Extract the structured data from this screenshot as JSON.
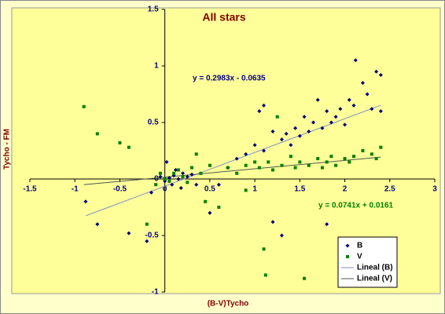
{
  "chart_data": {
    "type": "scatter",
    "title": "All stars",
    "x_label": "(B-V)Tycho",
    "y_label": "Tycho - FM",
    "xlim": [
      -1.5,
      3
    ],
    "xticks": [
      -1.5,
      -1,
      -0.5,
      0,
      0.5,
      1,
      1.5,
      2,
      2.5,
      3
    ],
    "ylim": [
      -1,
      1.5
    ],
    "yticks": [
      -1,
      -0.5,
      0,
      0.5,
      1,
      1.5
    ],
    "legend": "lower right",
    "series": [
      {
        "name": "B",
        "color": "#000080",
        "marker": "diamond",
        "x": [
          0,
          0.05,
          0.1,
          0.15,
          0.2,
          0.25,
          0.3,
          -0.05,
          0.08,
          0.12,
          0.02,
          0.18,
          0.35,
          -0.88,
          -0.75,
          -0.4,
          -0.2,
          -0.15,
          0.5,
          0.6,
          0.7,
          0.8,
          0.9,
          1.0,
          1.05,
          1.1,
          1.2,
          1.3,
          1.35,
          1.4,
          1.45,
          1.5,
          1.55,
          1.6,
          1.65,
          1.7,
          1.75,
          1.8,
          1.85,
          1.9,
          1.95,
          2.0,
          2.05,
          2.1,
          2.12,
          2.2,
          2.25,
          2.3,
          2.35,
          2.4,
          2.4,
          1.2,
          1.3,
          1.8,
          1.1
        ],
        "values": [
          -0.02,
          0.01,
          0.03,
          0.0,
          0.05,
          0.02,
          0.04,
          0.02,
          -0.05,
          0.08,
          0.15,
          -0.08,
          -0.05,
          -0.2,
          -0.4,
          -0.48,
          -0.55,
          -0.12,
          -0.3,
          -0.05,
          0.1,
          0.18,
          0.22,
          0.3,
          0.6,
          0.25,
          0.42,
          0.35,
          0.4,
          0.3,
          0.45,
          0.38,
          0.55,
          0.42,
          0.5,
          0.7,
          0.45,
          0.6,
          0.5,
          0.55,
          0.62,
          0.48,
          0.7,
          0.65,
          1.05,
          0.85,
          0.75,
          0.62,
          0.95,
          0.92,
          0.6,
          -0.38,
          -0.5,
          -0.4,
          0.65
        ]
      },
      {
        "name": "V",
        "color": "#008000",
        "marker": "square",
        "x": [
          -0.9,
          -0.75,
          -0.5,
          -0.4,
          -0.1,
          -0.05,
          0,
          0.05,
          0.1,
          0.15,
          0.2,
          0.25,
          0.3,
          0.35,
          0.4,
          0.5,
          0.6,
          -0.2,
          0.7,
          0.8,
          0.9,
          1.0,
          1.05,
          1.1,
          1.12,
          1.15,
          1.2,
          1.3,
          1.4,
          1.45,
          1.5,
          1.55,
          1.6,
          1.7,
          1.75,
          1.8,
          1.85,
          1.9,
          2.0,
          2.1,
          2.2,
          2.3,
          2.4,
          2.35,
          2.05,
          1.25,
          0.45,
          0.9
        ],
        "values": [
          0.64,
          0.4,
          0.32,
          0.28,
          -0.05,
          0.05,
          0,
          -0.02,
          0.05,
          0.08,
          0.02,
          -0.03,
          0.1,
          0.22,
          0.05,
          0.12,
          -0.25,
          -0.4,
          0.1,
          0.05,
          0.12,
          0.15,
          0.1,
          -0.62,
          -0.85,
          0.15,
          0.08,
          0.12,
          0.2,
          0.1,
          0.15,
          -0.88,
          0.12,
          0.18,
          0.1,
          0.15,
          0.2,
          0.12,
          0.18,
          0.2,
          0.25,
          0.22,
          0.28,
          0.18,
          0.15,
          0.55,
          -0.2,
          -0.1
        ]
      }
    ],
    "trendlines": [
      {
        "name": "Lineal (B)",
        "series": 0,
        "color": "#7f8fc8",
        "slope": 0.2983,
        "intercept": -0.0635,
        "label": "y = 0.2983x - 0.0635"
      },
      {
        "name": "Lineal (V)",
        "series": 1,
        "color": "#4a5a4a",
        "slope": 0.0741,
        "intercept": 0.0161,
        "label": "y = 0.0741x + 0.0161"
      }
    ]
  }
}
